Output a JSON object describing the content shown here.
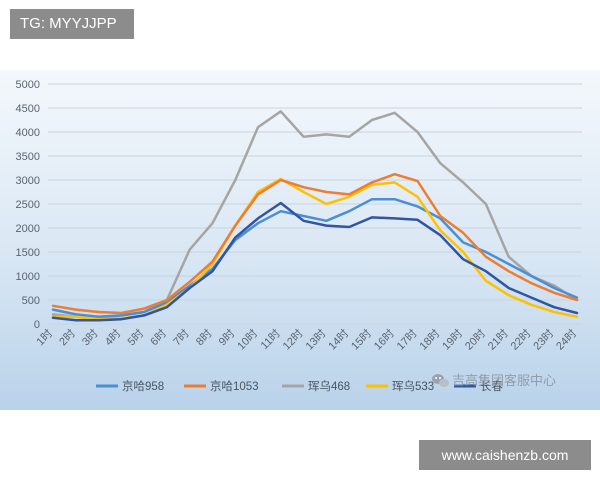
{
  "tg_label": "TG: MYYJJPP",
  "site_label": "www.caishenzb.com",
  "watermark": {
    "icon": "wechat-icon",
    "text": "吉高集团客服中心"
  },
  "colors": {
    "京哈958": "#4a8fd6",
    "京哈1053": "#ee7d31",
    "珲乌468": "#a5a5a5",
    "珲乌533": "#ffc000",
    "长春": "#2f55a4"
  },
  "chart_data": {
    "type": "line",
    "title": "",
    "xlabel": "",
    "ylabel": "",
    "ylim": [
      0,
      5000
    ],
    "yticks": [
      0,
      500,
      1000,
      1500,
      2000,
      2500,
      3000,
      3500,
      4000,
      4500,
      5000
    ],
    "grid": true,
    "legend_position": "bottom",
    "categories": [
      "1时",
      "2时",
      "3时",
      "4时",
      "5时",
      "6时",
      "7时",
      "8时",
      "9时",
      "10时",
      "11时",
      "12时",
      "13时",
      "14时",
      "15时",
      "16时",
      "17时",
      "18时",
      "19时",
      "20时",
      "21时",
      "22时",
      "23时",
      "24时"
    ],
    "series": [
      {
        "name": "京哈958",
        "values": [
          300,
          200,
          150,
          180,
          250,
          450,
          800,
          1150,
          1750,
          2100,
          2350,
          2250,
          2150,
          2350,
          2600,
          2600,
          2450,
          2200,
          1700,
          1500,
          1250,
          1000,
          750,
          550
        ]
      },
      {
        "name": "京哈1053",
        "values": [
          380,
          300,
          250,
          230,
          320,
          500,
          880,
          1300,
          2050,
          2700,
          3000,
          2850,
          2750,
          2700,
          2950,
          3120,
          2980,
          2250,
          1900,
          1400,
          1100,
          850,
          650,
          500
        ]
      },
      {
        "name": "珲乌468",
        "values": [
          200,
          150,
          100,
          180,
          250,
          500,
          1550,
          2100,
          3000,
          4100,
          4430,
          3900,
          3950,
          3900,
          4250,
          4400,
          4000,
          3350,
          2950,
          2500,
          1400,
          1000,
          800,
          500
        ]
      },
      {
        "name": "珲乌533",
        "values": [
          150,
          150,
          100,
          120,
          180,
          400,
          750,
          1250,
          2050,
          2750,
          3020,
          2750,
          2500,
          2650,
          2900,
          2950,
          2650,
          1950,
          1500,
          900,
          600,
          400,
          250,
          150
        ]
      },
      {
        "name": "长春",
        "values": [
          130,
          80,
          80,
          100,
          180,
          350,
          750,
          1100,
          1800,
          2200,
          2520,
          2150,
          2050,
          2020,
          2220,
          2200,
          2170,
          1850,
          1350,
          1100,
          750,
          550,
          350,
          230
        ]
      }
    ]
  }
}
